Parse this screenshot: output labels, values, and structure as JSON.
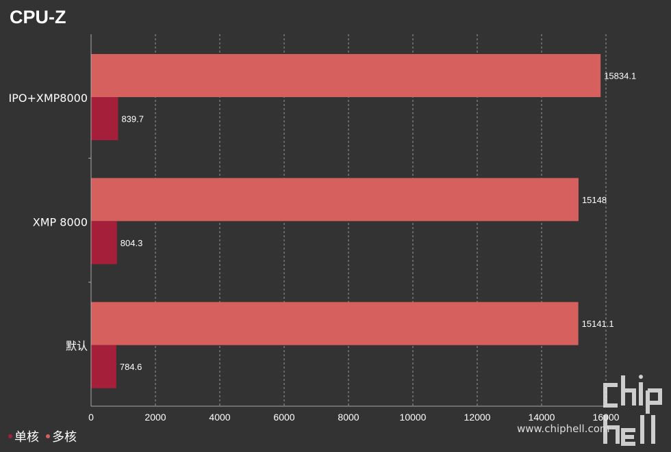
{
  "chart_data": {
    "type": "bar",
    "orientation": "horizontal",
    "title": "CPU-Z",
    "categories": [
      "IPO+XMP8000",
      "XMP 8000",
      "默认"
    ],
    "series": [
      {
        "name": "多核",
        "values": [
          15834.1,
          15148,
          15141.1
        ],
        "color": "#d5605e"
      },
      {
        "name": "单核",
        "values": [
          839.7,
          804.3,
          784.6
        ],
        "color": "#a51f3a"
      }
    ],
    "value_labels": {
      "多核": [
        "15834.1",
        "15148",
        "15141.1"
      ],
      "单核": [
        "839.7",
        "804.3",
        "784.6"
      ]
    },
    "xlim": [
      0,
      16000
    ],
    "xticks": [
      0,
      2000,
      4000,
      6000,
      8000,
      10000,
      12000,
      14000,
      16000
    ],
    "xlabel": "",
    "ylabel": "",
    "grid": "vertical-dashed",
    "legend_position": "bottom-left"
  },
  "legend": {
    "items": [
      {
        "label": "单核",
        "color": "#a51f3a"
      },
      {
        "label": "多核",
        "color": "#d5605e"
      }
    ]
  },
  "watermark": {
    "logo_text": "chip hell",
    "url": "www.chiphell.com"
  }
}
